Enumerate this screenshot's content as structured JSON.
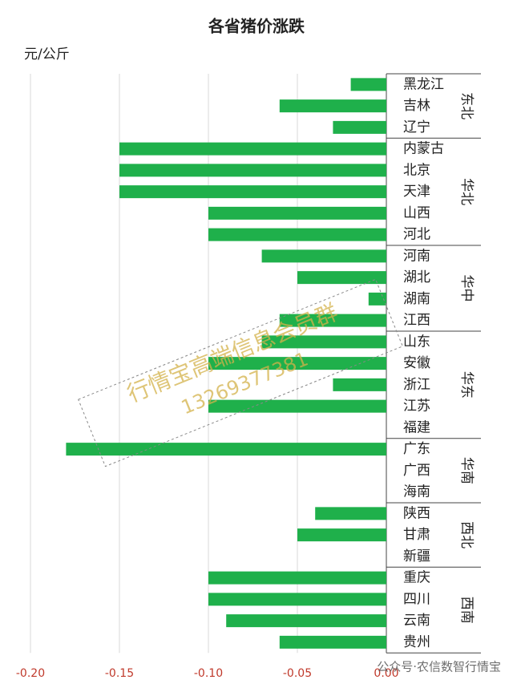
{
  "chart_data": {
    "type": "bar",
    "orientation": "horizontal",
    "title": "各省猪价涨跌",
    "unit": "元/公斤",
    "color": "#1fb04b",
    "grid": true,
    "xlim": [
      -0.2,
      0
    ],
    "xticks": [
      {
        "value": -0.2,
        "label": "-0.20"
      },
      {
        "value": -0.15,
        "label": "-0.15"
      },
      {
        "value": -0.1,
        "label": "-0.10"
      },
      {
        "value": -0.05,
        "label": "-0.05"
      },
      {
        "value": 0,
        "label": "0.00"
      }
    ],
    "groups": [
      {
        "name": "东北",
        "categories": [
          "黑龙江",
          "吉林",
          "辽宁"
        ],
        "values": [
          -0.02,
          -0.06,
          -0.03
        ]
      },
      {
        "name": "华北",
        "categories": [
          "内蒙古",
          "北京",
          "天津",
          "山西",
          "河北"
        ],
        "values": [
          -0.15,
          -0.15,
          -0.15,
          -0.1,
          -0.1
        ]
      },
      {
        "name": "华中",
        "categories": [
          "河南",
          "湖北",
          "湖南",
          "江西"
        ],
        "values": [
          -0.07,
          -0.05,
          -0.01,
          -0.06
        ]
      },
      {
        "name": "华东",
        "categories": [
          "山东",
          "安徽",
          "浙江",
          "江苏",
          "福建"
        ],
        "values": [
          -0.07,
          -0.1,
          -0.03,
          -0.1,
          0
        ]
      },
      {
        "name": "华南",
        "categories": [
          "广东",
          "广西",
          "海南"
        ],
        "values": [
          -0.18,
          0,
          0
        ]
      },
      {
        "name": "西北",
        "categories": [
          "陕西",
          "甘肃",
          "新疆"
        ],
        "values": [
          -0.04,
          -0.05,
          0
        ]
      },
      {
        "name": "西南",
        "categories": [
          "重庆",
          "四川",
          "云南",
          "贵州"
        ],
        "values": [
          -0.1,
          -0.1,
          -0.09,
          -0.06
        ]
      }
    ],
    "watermark": [
      "行情宝高端信息会员群",
      "13269377381"
    ],
    "footer": "公众号·农信数智行情宝"
  }
}
